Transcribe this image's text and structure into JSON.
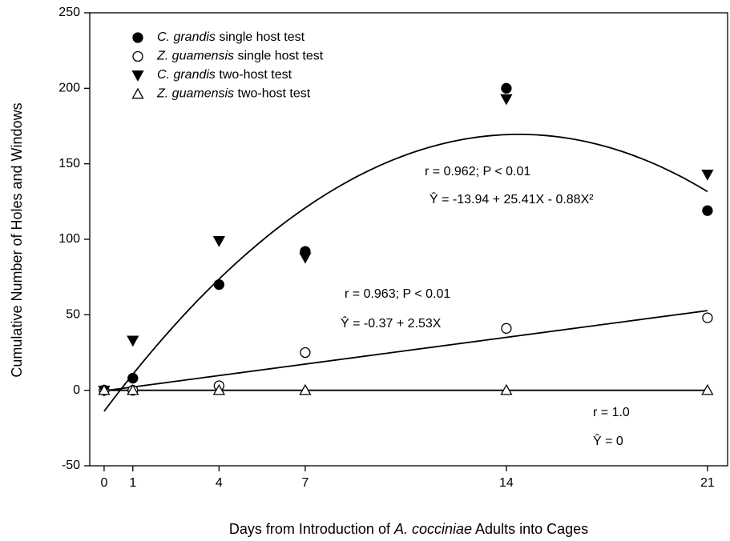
{
  "chart_data": {
    "type": "scatter",
    "xlabel": [
      "Days from Introduction of ",
      "A. cocciniae",
      " Adults into Cages"
    ],
    "ylabel": "Cumulative Number of Holes and Windows",
    "xlim": [
      -0.5,
      21.7
    ],
    "ylim": [
      -50,
      250
    ],
    "xticks": [
      0,
      1,
      4,
      7,
      14,
      21
    ],
    "yticks": [
      -50,
      0,
      50,
      100,
      150,
      200,
      250
    ],
    "series": [
      {
        "name": "C. grandis single host test",
        "marker": "circle",
        "color": "#000000",
        "filled": true,
        "x": [
          0,
          1,
          4,
          7,
          14,
          21
        ],
        "values": [
          0,
          8,
          70,
          92,
          200,
          119
        ]
      },
      {
        "name": "Z. guamensis single host test",
        "marker": "circle",
        "color": "#000000",
        "filled": false,
        "x": [
          0,
          1,
          4,
          7,
          14,
          21
        ],
        "values": [
          0,
          0,
          3,
          25,
          41,
          48
        ]
      },
      {
        "name": "C. grandis two-host test",
        "marker": "triangle-down",
        "color": "#000000",
        "filled": true,
        "x": [
          0,
          1,
          4,
          7,
          14,
          21
        ],
        "values": [
          0,
          33,
          99,
          88,
          193,
          143
        ]
      },
      {
        "name": "Z. guamensis two-host test",
        "marker": "triangle-up",
        "color": "#000000",
        "filled": false,
        "x": [
          0,
          1,
          4,
          7,
          14,
          21
        ],
        "values": [
          0,
          0,
          0,
          0,
          0,
          0
        ]
      }
    ],
    "fits": [
      {
        "coefficients": [
          -13.94,
          25.41,
          -0.88
        ],
        "r": "r = 0.962; P < 0.01",
        "equation": "Ŷ = -13.94 + 25.41X - 0.88X²"
      },
      {
        "coefficients": [
          -0.37,
          2.53
        ],
        "r": "r = 0.963; P < 0.01",
        "equation": "Ŷ = -0.37 + 2.53X"
      },
      {
        "coefficients": [
          0
        ],
        "r": "r = 1.0",
        "equation": "Ŷ = 0"
      }
    ],
    "legend": "upper left"
  }
}
